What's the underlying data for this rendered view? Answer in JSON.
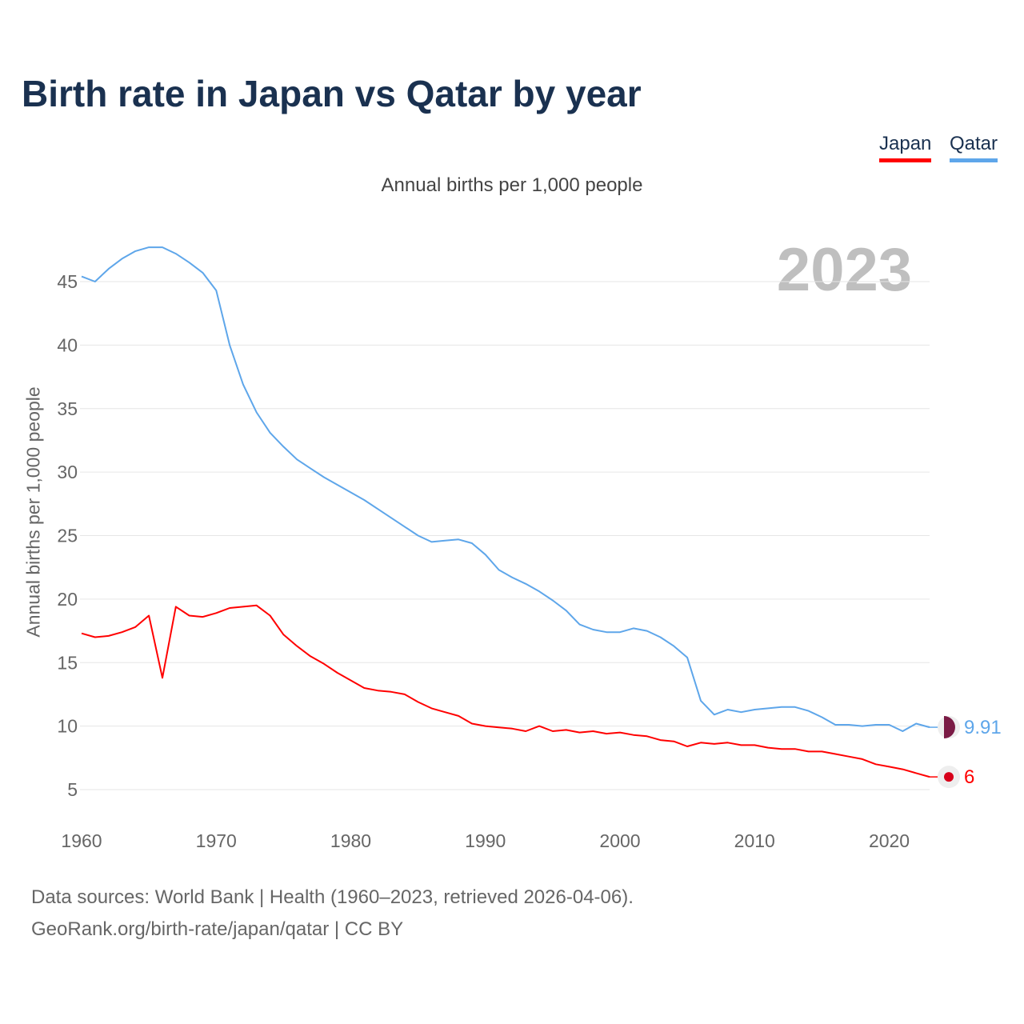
{
  "title": "Birth rate in Japan vs Qatar by year",
  "subtitle": "Annual births per 1,000 people",
  "year_label": "2023",
  "legend": [
    {
      "label": "Japan",
      "color": "#ff0000"
    },
    {
      "label": "Qatar",
      "color": "#5ea6ea"
    }
  ],
  "source_line1": "Data sources: World Bank | Health (1960–2023, retrieved 2026-04-06).",
  "source_line2": "GeoRank.org/birth-rate/japan/qatar | CC BY",
  "chart_data": {
    "type": "line",
    "title": "Birth rate in Japan vs Qatar by year",
    "xlabel": "",
    "ylabel": "Annual births per 1,000 people",
    "xlim": [
      1960,
      2023
    ],
    "ylim": [
      5,
      45
    ],
    "xticks": [
      1960,
      1970,
      1980,
      1990,
      2000,
      2010,
      2020
    ],
    "yticks": [
      5,
      10,
      15,
      20,
      25,
      30,
      35,
      40,
      45
    ],
    "grid": true,
    "legend_position": "top-right",
    "x_start": 1960,
    "series": [
      {
        "name": "Japan",
        "color": "#ff0000",
        "end_label": "6",
        "values": [
          17.3,
          17.0,
          17.1,
          17.4,
          17.8,
          18.7,
          13.8,
          19.4,
          18.7,
          18.6,
          18.9,
          19.3,
          19.4,
          19.5,
          18.7,
          17.2,
          16.3,
          15.5,
          14.9,
          14.2,
          13.6,
          13.0,
          12.8,
          12.7,
          12.5,
          11.9,
          11.4,
          11.1,
          10.8,
          10.2,
          10.0,
          9.9,
          9.8,
          9.6,
          10.0,
          9.6,
          9.7,
          9.5,
          9.6,
          9.4,
          9.5,
          9.3,
          9.2,
          8.9,
          8.8,
          8.4,
          8.7,
          8.6,
          8.7,
          8.5,
          8.5,
          8.3,
          8.2,
          8.2,
          8.0,
          8.0,
          7.8,
          7.6,
          7.4,
          7.0,
          6.8,
          6.6,
          6.3,
          6.0
        ]
      },
      {
        "name": "Qatar",
        "color": "#5ea6ea",
        "end_label": "9.91",
        "values": [
          45.4,
          45.0,
          46.0,
          46.8,
          47.4,
          47.7,
          47.7,
          47.2,
          46.5,
          45.7,
          44.3,
          40.0,
          36.9,
          34.7,
          33.1,
          32.0,
          31.0,
          30.3,
          29.6,
          29.0,
          28.4,
          27.8,
          27.1,
          26.4,
          25.7,
          25.0,
          24.5,
          24.6,
          24.7,
          24.4,
          23.5,
          22.3,
          21.7,
          21.2,
          20.6,
          19.9,
          19.1,
          18.0,
          17.6,
          17.4,
          17.4,
          17.7,
          17.5,
          17.0,
          16.3,
          15.4,
          12.0,
          10.9,
          11.3,
          11.1,
          11.3,
          11.4,
          11.5,
          11.5,
          11.2,
          10.7,
          10.1,
          10.1,
          10.0,
          10.1,
          10.1,
          9.6,
          10.2,
          9.91
        ]
      }
    ]
  }
}
